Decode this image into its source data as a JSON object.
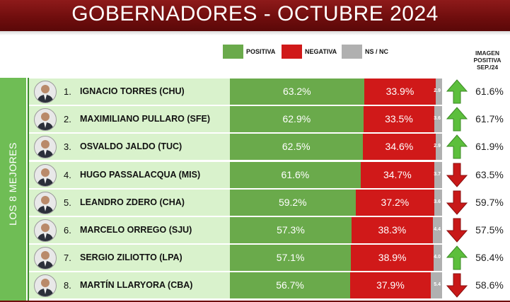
{
  "title": "GOBERNADORES - OCTUBRE 2024",
  "legend": [
    {
      "label": "POSITIVA",
      "color": "#6aaa4b"
    },
    {
      "label": "NEGATIVA",
      "color": "#d01919"
    },
    {
      "label": "NS / NC",
      "color": "#b0b0b0"
    }
  ],
  "image_header": [
    "IMAGEN",
    "POSITIVA",
    "SEP./24"
  ],
  "sidebar_label": "LOS 8 MEJORES",
  "colors": {
    "positive": "#6aaa4b",
    "negative": "#d01919",
    "ns": "#b0b0b0",
    "up": "#5cbf3c",
    "down": "#c81818"
  },
  "chart_data": {
    "type": "bar",
    "stacked": true,
    "orientation": "horizontal",
    "title": "GOBERNADORES - OCTUBRE 2024",
    "xlim": [
      0,
      100
    ],
    "categories": [
      "IGNACIO TORRES (CHU)",
      "MAXIMILIANO PULLARO (SFE)",
      "OSVALDO JALDO (TUC)",
      "HUGO PASSALACQUA (MIS)",
      "LEANDRO ZDERO (CHA)",
      "MARCELO ORREGO (SJU)",
      "SERGIO ZILIOTTO (LPA)",
      "MARTÍN LLARYORA (CBA)"
    ],
    "series": [
      {
        "name": "POSITIVA",
        "values": [
          63.2,
          62.9,
          62.5,
          61.6,
          59.2,
          57.3,
          57.1,
          56.7
        ],
        "labels": [
          "63.2%",
          "62.9%",
          "62.5%",
          "61.6%",
          "59.2%",
          "57.3%",
          "57.1%",
          "56.7%"
        ]
      },
      {
        "name": "NEGATIVA",
        "values": [
          33.9,
          33.5,
          34.6,
          34.7,
          37.2,
          38.3,
          38.9,
          37.9
        ],
        "labels": [
          "33.9%",
          "33.5%",
          "34.6%",
          "34.7%",
          "37.2%",
          "38.3%",
          "38.9%",
          "37.9%"
        ]
      },
      {
        "name": "NS / NC",
        "values": [
          2.9,
          3.6,
          2.9,
          3.7,
          3.6,
          4.4,
          4.0,
          5.4
        ],
        "labels": [
          "2.9",
          "3.6",
          "2.9",
          "3.7",
          "3.6",
          "4.4",
          "4.0",
          "5.4"
        ]
      }
    ],
    "ranks": [
      "1.",
      "2.",
      "3.",
      "4.",
      "5.",
      "6.",
      "7.",
      "8."
    ],
    "trend": [
      "up",
      "up",
      "up",
      "down",
      "down",
      "down",
      "up",
      "down"
    ],
    "image_positive_sep24": [
      "61.6%",
      "61.7%",
      "61.9%",
      "63.5%",
      "59.7%",
      "57.5%",
      "56.4%",
      "58.6%"
    ]
  }
}
